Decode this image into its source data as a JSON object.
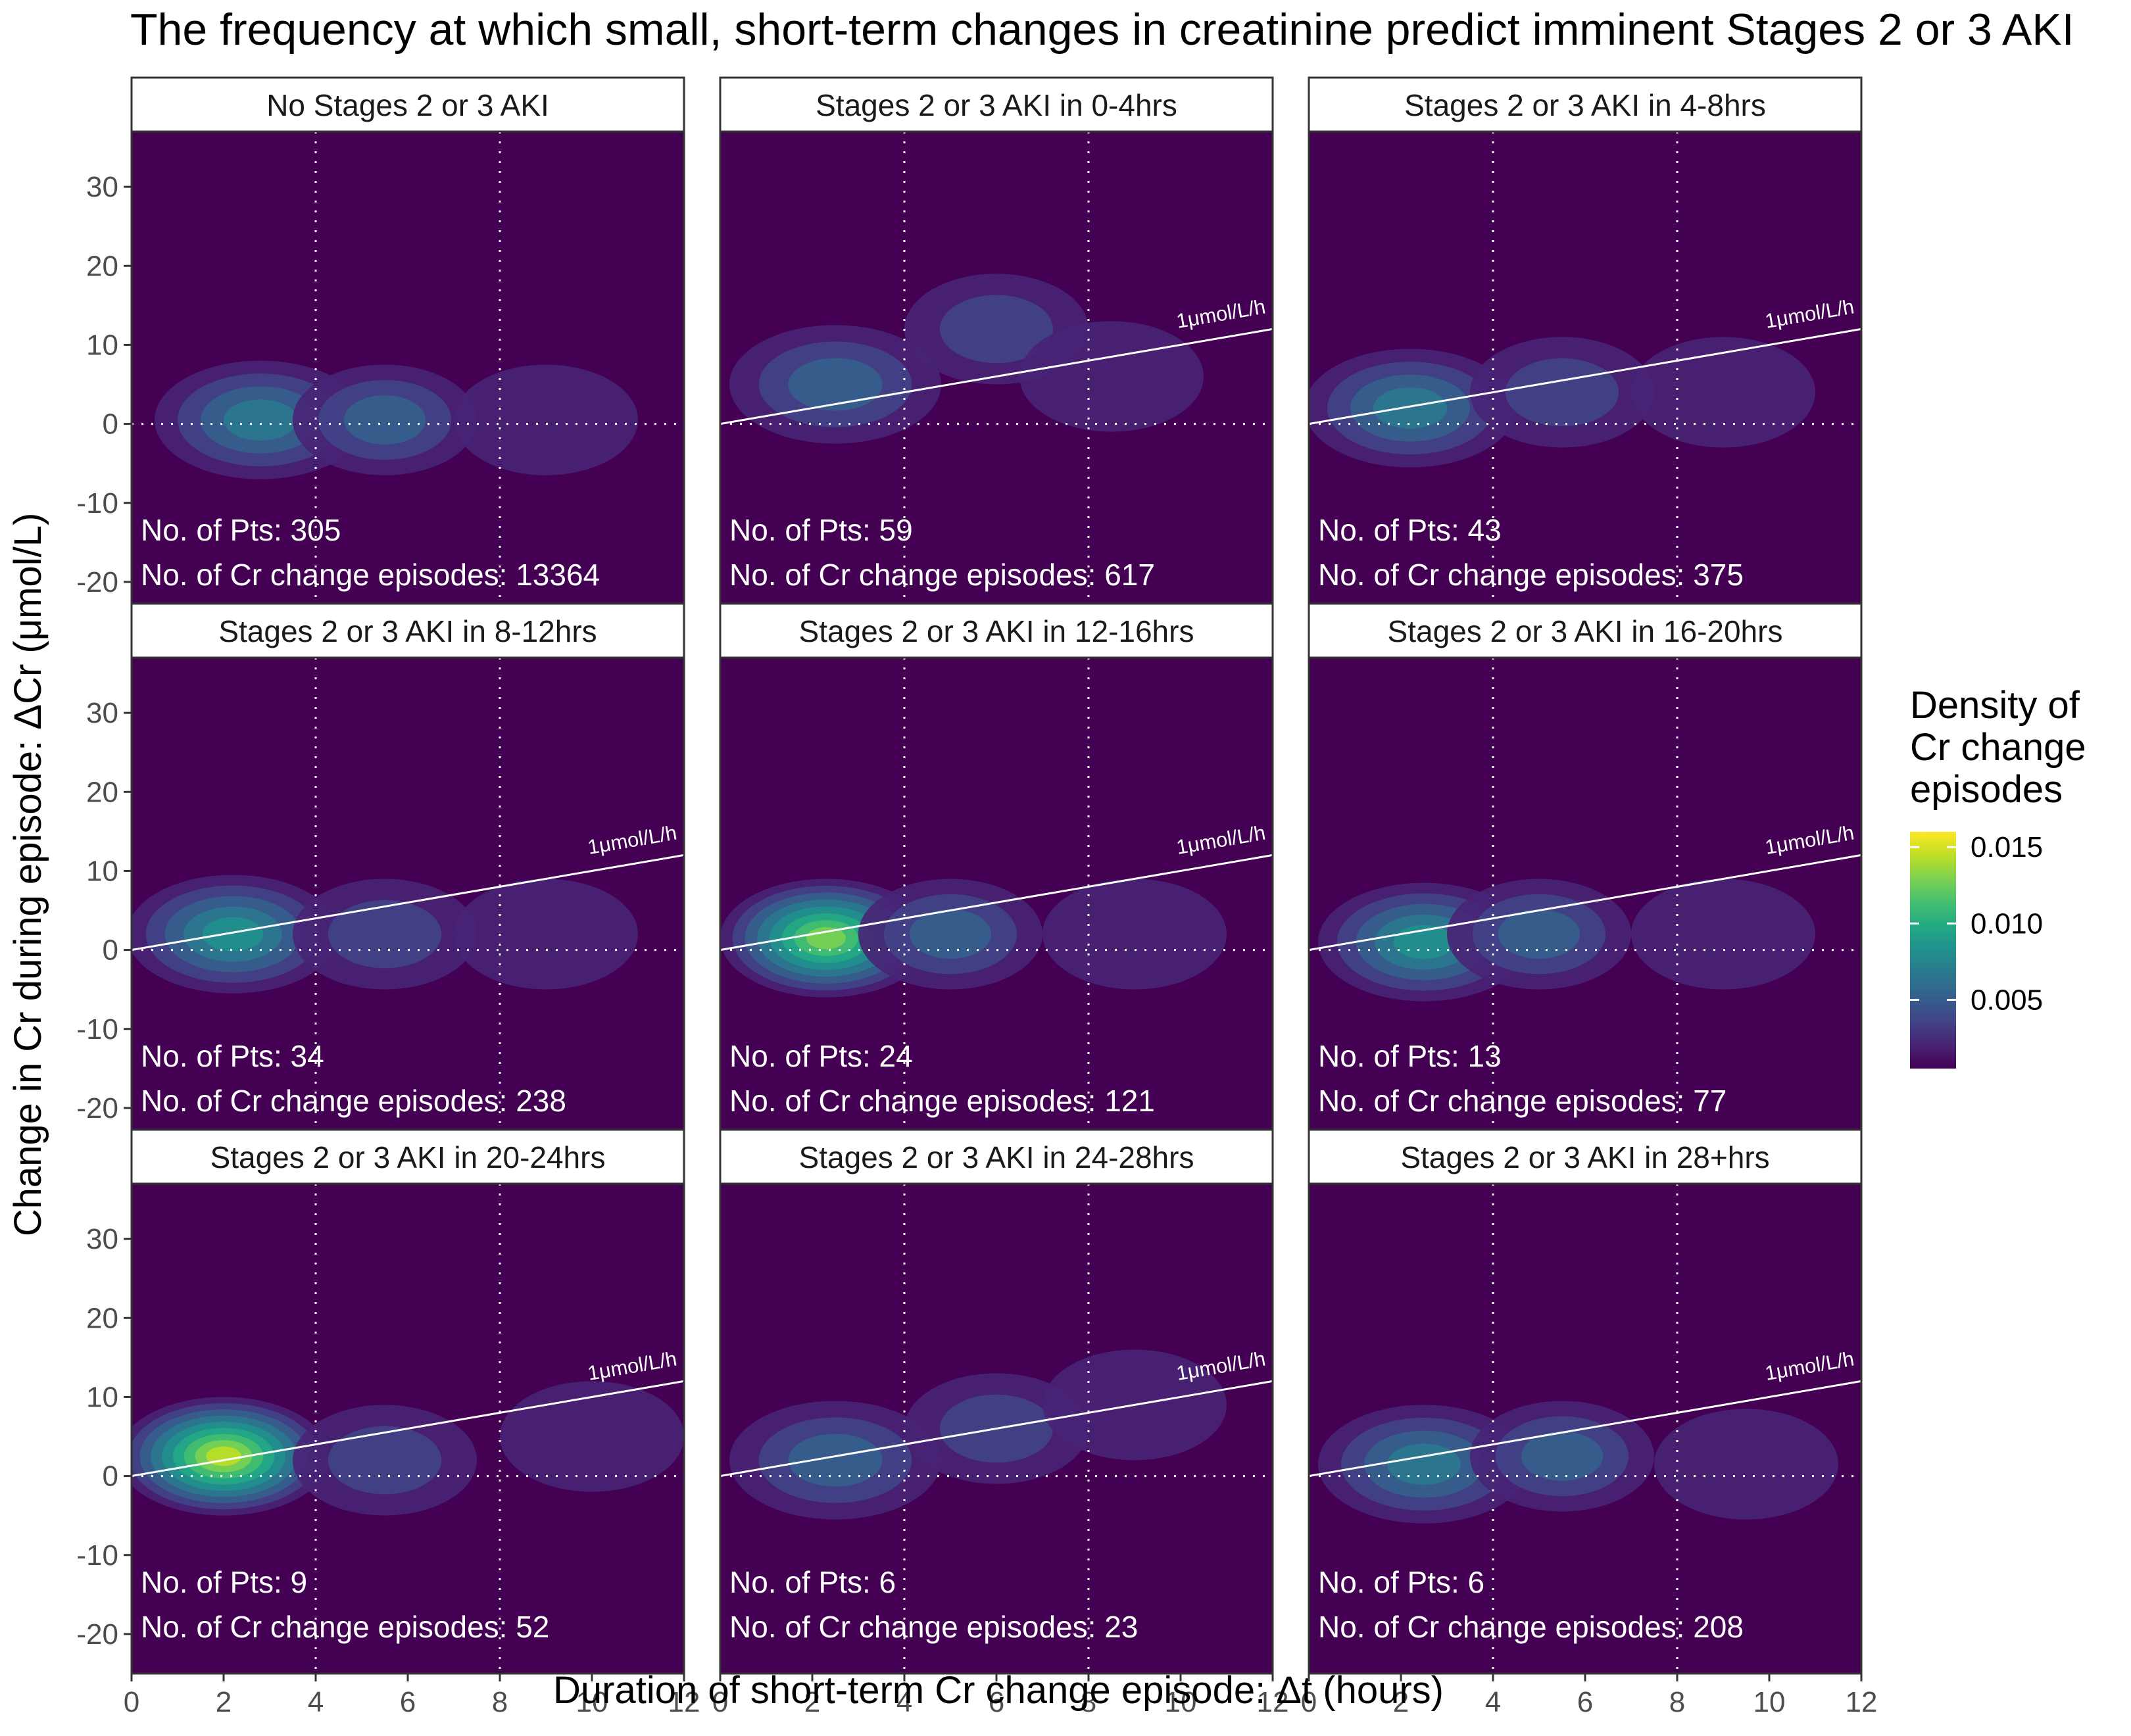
{
  "chart_data": {
    "type": "heatmap",
    "subtype": "2d-density-contour-facets",
    "title": "The frequency at which small, short-term changes in creatinine predict imminent Stages 2 or 3 AKI",
    "xlabel": "Duration of short-term Cr change episode: Δt (hours)",
    "ylabel": "Change in Cr during episode: ΔCr (μmol/L)",
    "xlim": [
      0,
      12
    ],
    "ylim": [
      -25,
      37
    ],
    "x_ticks": [
      0,
      2,
      4,
      6,
      8,
      10,
      12
    ],
    "y_ticks": [
      -20,
      -10,
      0,
      10,
      20,
      30
    ],
    "vertical_reference_lines": [
      4,
      8
    ],
    "horizontal_reference_line": 0,
    "rate_line": {
      "label": "1μmol/L/h",
      "slope": 1
    },
    "legend": {
      "title_lines": [
        "Density of",
        "Cr change",
        "episodes"
      ],
      "ticks": [
        0.005,
        0.01,
        0.015
      ],
      "tick_labels": [
        "0.005",
        "0.010",
        "0.015"
      ],
      "range": [
        0.0005,
        0.016
      ],
      "placement": "right"
    },
    "annotation_prefix_pts": "No. of Pts: ",
    "annotation_prefix_episodes": "No. of Cr change episodes: ",
    "panels": [
      {
        "label": "No Stages 2 or 3 AKI",
        "pts": "305",
        "episodes": "13364",
        "show_rate_line": false,
        "peaks": [
          {
            "x": 2.8,
            "y": 0.5,
            "w": 0.42
          },
          {
            "x": 5.5,
            "y": 0.5,
            "w": 0.3
          },
          {
            "x": 9,
            "y": 0.5,
            "w": 0.14
          }
        ]
      },
      {
        "label": "Stages 2 or 3 AKI in 0-4hrs",
        "pts": "59",
        "episodes": "617",
        "show_rate_line": true,
        "peaks": [
          {
            "x": 2.5,
            "y": 5,
            "w": 0.28
          },
          {
            "x": 6,
            "y": 12,
            "w": 0.18
          },
          {
            "x": 8.5,
            "y": 6,
            "w": 0.12
          }
        ]
      },
      {
        "label": "Stages 2 or 3 AKI in 4-8hrs",
        "pts": "43",
        "episodes": "375",
        "show_rate_line": true,
        "peaks": [
          {
            "x": 2.2,
            "y": 2,
            "w": 0.45
          },
          {
            "x": 5.5,
            "y": 4,
            "w": 0.25
          },
          {
            "x": 9,
            "y": 4,
            "w": 0.14
          }
        ]
      },
      {
        "label": "Stages 2 or 3 AKI in 8-12hrs",
        "pts": "34",
        "episodes": "238",
        "show_rate_line": true,
        "peaks": [
          {
            "x": 2.2,
            "y": 2,
            "w": 0.5
          },
          {
            "x": 5.5,
            "y": 2,
            "w": 0.25
          },
          {
            "x": 9,
            "y": 2,
            "w": 0.12
          }
        ]
      },
      {
        "label": "Stages 2 or 3 AKI in 12-16hrs",
        "pts": "24",
        "episodes": "121",
        "show_rate_line": true,
        "peaks": [
          {
            "x": 2.3,
            "y": 1.5,
            "w": 0.88
          },
          {
            "x": 5,
            "y": 2,
            "w": 0.3
          },
          {
            "x": 9,
            "y": 2,
            "w": 0.12
          }
        ]
      },
      {
        "label": "Stages 2 or 3 AKI in 16-20hrs",
        "pts": "13",
        "episodes": "77",
        "show_rate_line": true,
        "peaks": [
          {
            "x": 2.5,
            "y": 1,
            "w": 0.55
          },
          {
            "x": 5,
            "y": 2,
            "w": 0.35
          },
          {
            "x": 9,
            "y": 2,
            "w": 0.14
          }
        ]
      },
      {
        "label": "Stages 2 or 3 AKI in 20-24hrs",
        "pts": "9",
        "episodes": "52",
        "show_rate_line": true,
        "peaks": [
          {
            "x": 2,
            "y": 2.5,
            "w": 0.95
          },
          {
            "x": 5.5,
            "y": 2,
            "w": 0.25
          },
          {
            "x": 10,
            "y": 5,
            "w": 0.15
          }
        ]
      },
      {
        "label": "Stages 2 or 3 AKI in 24-28hrs",
        "pts": "6",
        "episodes": "23",
        "show_rate_line": true,
        "peaks": [
          {
            "x": 2.5,
            "y": 2,
            "w": 0.3
          },
          {
            "x": 6,
            "y": 6,
            "w": 0.18
          },
          {
            "x": 9,
            "y": 9,
            "w": 0.12
          }
        ]
      },
      {
        "label": "Stages 2 or 3 AKI in 28+hrs",
        "pts": "6",
        "episodes": "208",
        "show_rate_line": true,
        "peaks": [
          {
            "x": 2.5,
            "y": 1.5,
            "w": 0.4
          },
          {
            "x": 5.5,
            "y": 2.5,
            "w": 0.28
          },
          {
            "x": 9.5,
            "y": 1.5,
            "w": 0.16
          }
        ]
      }
    ]
  },
  "colors": {
    "background": "#440154",
    "viridis": [
      "#440154",
      "#482475",
      "#414487",
      "#355f8d",
      "#2a788e",
      "#21908d",
      "#22a884",
      "#44bf70",
      "#7ad151",
      "#bddf26",
      "#fde725"
    ],
    "reference_line": "#ffffff"
  }
}
